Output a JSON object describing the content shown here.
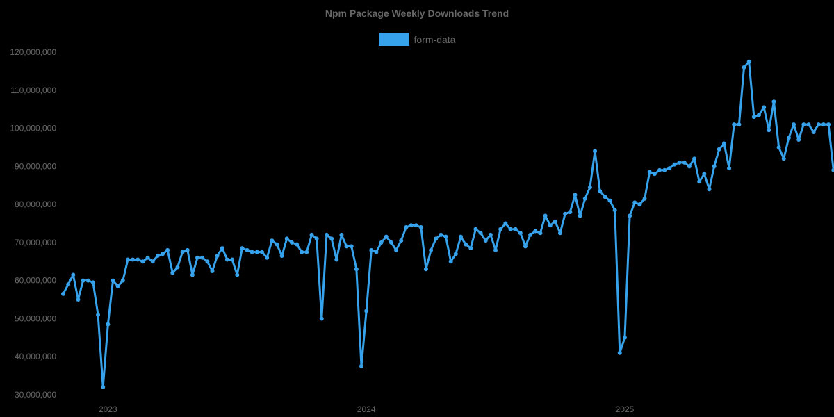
{
  "chart_data": {
    "type": "line",
    "title": "Npm Package Weekly Downloads Trend",
    "xlabel": "",
    "ylabel": "",
    "ylim": [
      30000000,
      120000000
    ],
    "y_ticks": [
      "30,000,000",
      "40,000,000",
      "50,000,000",
      "60,000,000",
      "70,000,000",
      "80,000,000",
      "90,000,000",
      "100,000,000",
      "110,000,000",
      "120,000,000"
    ],
    "x_ticks": [
      {
        "label": "2023",
        "week_index": 9
      },
      {
        "label": "2024",
        "week_index": 61
      },
      {
        "label": "2025",
        "week_index": 113
      }
    ],
    "grid": false,
    "legend_position": "top",
    "series": [
      {
        "name": "form-data",
        "color": "#36a2eb",
        "values": [
          56.5,
          59,
          61.5,
          55,
          60,
          60,
          59.5,
          51,
          32,
          48.5,
          60,
          58.5,
          60,
          65.5,
          65.5,
          65.5,
          65,
          66,
          65,
          66.5,
          67,
          68,
          62,
          63.5,
          67.5,
          68,
          61.5,
          66,
          66,
          65,
          62.5,
          66.5,
          68.5,
          65.5,
          65.5,
          61.5,
          68.5,
          68,
          67.5,
          67.5,
          67.5,
          66,
          70.5,
          69.5,
          66.5,
          71,
          70,
          69.5,
          67.5,
          67.5,
          72,
          71,
          50,
          72,
          71,
          65.5,
          72,
          69,
          69,
          63,
          37.5,
          52,
          68,
          67.5,
          70,
          71.5,
          70,
          68,
          70.5,
          74,
          74.5,
          74.5,
          74,
          63,
          68,
          71,
          72,
          71.5,
          65,
          67,
          71.5,
          69.5,
          68.5,
          73.5,
          72.5,
          70.5,
          72,
          68,
          73.5,
          75,
          73.5,
          73.5,
          72.5,
          69,
          72,
          73,
          72.5,
          77,
          74.5,
          75.5,
          72.5,
          77.5,
          78,
          82.5,
          77,
          81.5,
          84.5,
          94,
          83.5,
          82,
          81,
          78.5,
          41,
          45,
          77,
          80.5,
          80,
          81.5,
          88.5,
          88,
          89,
          89,
          89.5,
          90.5,
          91,
          91,
          90,
          92,
          86,
          88,
          84,
          90,
          94.5,
          96,
          89.5,
          101,
          101,
          116,
          117.5,
          103,
          103.5,
          105.5,
          99.5,
          107,
          95,
          92,
          97.5,
          101,
          97,
          101,
          101,
          99,
          101,
          101,
          101,
          89
        ]
      }
    ],
    "value_unit_note": "values in millions of weekly downloads"
  },
  "header": {
    "title": "Npm Package Weekly Downloads Trend",
    "legend_label": "form-data",
    "legend_color": "#36a2eb"
  }
}
